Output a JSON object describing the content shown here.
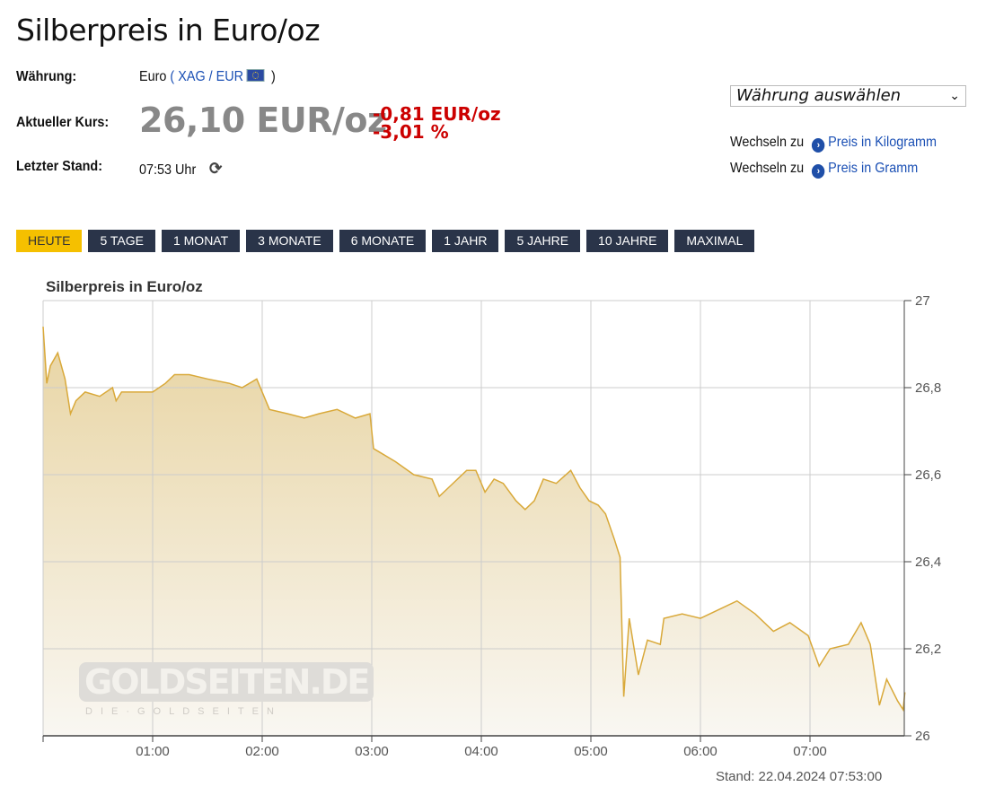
{
  "title": "Silberpreis in Euro/oz",
  "info": {
    "currency_label": "Währung:",
    "currency_value": "Euro",
    "pair_base": "XAG",
    "pair_quote": "EUR",
    "price_label": "Aktueller Kurs:",
    "price": "26,10 EUR/oz",
    "change_abs": "-0,81 EUR/oz",
    "change_pct": "-3,01 %",
    "updated_label": "Letzter Stand:",
    "updated_value": "07:53 Uhr",
    "refresh_icon": "refresh-icon"
  },
  "currency_select": {
    "value": "Währung auswählen"
  },
  "switch_links": [
    {
      "prefix": "Wechseln zu",
      "label": "Preis in Kilogramm"
    },
    {
      "prefix": "Wechseln zu",
      "label": "Preis in Gramm"
    }
  ],
  "tabs": [
    {
      "label": "HEUTE",
      "active": true
    },
    {
      "label": "5 TAGE"
    },
    {
      "label": "1 MONAT"
    },
    {
      "label": "3 MONATE"
    },
    {
      "label": "6 MONATE"
    },
    {
      "label": "1 JAHR"
    },
    {
      "label": "5 JAHRE"
    },
    {
      "label": "10 JAHRE"
    },
    {
      "label": "MAXIMAL"
    }
  ],
  "watermark": {
    "logo": "GOLDSEITEN.DE",
    "tagline": "DIE GOLDSEITEN"
  },
  "colors": {
    "line": "#d9a93a",
    "fill_top": "#e8d4a2",
    "fill_bottom": "#f9f7f2",
    "negative": "#cc0000",
    "tab_active": "#f5c000",
    "tab": "#2a3449"
  },
  "chart_data": {
    "type": "area",
    "title": "Silberpreis in Euro/oz",
    "x_ticks": [
      "01:00",
      "02:00",
      "03:00",
      "04:00",
      "05:00",
      "06:00",
      "07:00"
    ],
    "y_ticks": [
      "27",
      "26,8",
      "26,6",
      "26,4",
      "26,2",
      "26"
    ],
    "xlim": [
      "00:00",
      "07:53"
    ],
    "ylim": [
      26,
      27
    ],
    "grid": true,
    "footer": "Stand: 22.04.2024 07:53:00",
    "x": [
      "00:00",
      "00:02",
      "00:04",
      "00:08",
      "00:12",
      "00:15",
      "00:18",
      "00:23",
      "00:31",
      "00:38",
      "00:40",
      "00:43",
      "00:50",
      "01:00",
      "01:07",
      "01:12",
      "01:20",
      "01:30",
      "01:42",
      "01:49",
      "01:57",
      "02:00",
      "02:04",
      "02:14",
      "02:23",
      "02:31",
      "02:41",
      "02:51",
      "02:59",
      "03:01",
      "03:05",
      "03:13",
      "03:23",
      "03:33",
      "03:37",
      "03:42",
      "03:52",
      "03:57",
      "04:02",
      "04:07",
      "04:12",
      "04:19",
      "04:24",
      "04:29",
      "04:34",
      "04:41",
      "04:49",
      "04:54",
      "04:59",
      "05:04",
      "05:08",
      "05:13",
      "05:16",
      "05:18",
      "05:21",
      "05:26",
      "05:31",
      "05:38",
      "05:40",
      "05:50",
      "06:00",
      "06:10",
      "06:20",
      "06:30",
      "06:40",
      "06:49",
      "06:59",
      "07:05",
      "07:11",
      "07:21",
      "07:28",
      "07:33",
      "07:38",
      "07:42",
      "07:48",
      "07:51",
      "07:52"
    ],
    "y": [
      26.94,
      26.81,
      26.85,
      26.88,
      26.82,
      26.74,
      26.77,
      26.79,
      26.78,
      26.8,
      26.77,
      26.79,
      26.79,
      26.79,
      26.81,
      26.83,
      26.83,
      26.82,
      26.81,
      26.8,
      26.82,
      26.79,
      26.75,
      26.74,
      26.73,
      26.74,
      26.75,
      26.73,
      26.74,
      26.66,
      26.65,
      26.63,
      26.6,
      26.59,
      26.55,
      26.57,
      26.61,
      26.61,
      26.56,
      26.59,
      26.58,
      26.54,
      26.52,
      26.54,
      26.59,
      26.58,
      26.61,
      26.57,
      26.54,
      26.53,
      26.51,
      26.45,
      26.41,
      26.09,
      26.27,
      26.14,
      26.22,
      26.21,
      26.27,
      26.28,
      26.27,
      26.29,
      26.31,
      26.28,
      26.24,
      26.26,
      26.23,
      26.16,
      26.2,
      26.21,
      26.26,
      26.21,
      26.07,
      26.13,
      26.08,
      26.06,
      26.1
    ]
  }
}
